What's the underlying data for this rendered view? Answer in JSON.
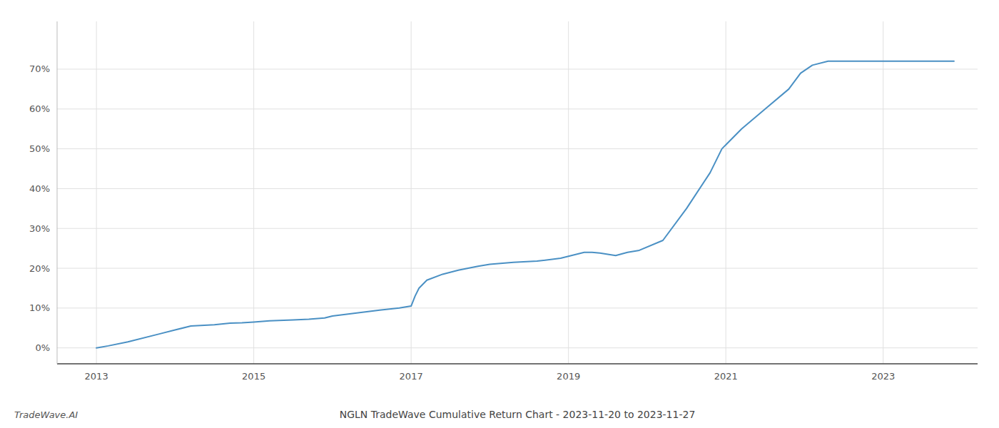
{
  "chart_data": {
    "type": "line",
    "title": "NGLN TradeWave Cumulative Return Chart - 2023-11-20 to 2023-11-27",
    "annotations": [
      "TradeWave.AI"
    ],
    "color": "#4a90c4",
    "grid": true,
    "x": [
      2013.0,
      2013.15,
      2013.4,
      2013.8,
      2014.0,
      2014.2,
      2014.5,
      2014.7,
      2014.85,
      2015.0,
      2015.2,
      2015.5,
      2015.7,
      2015.9,
      2016.0,
      2016.2,
      2016.4,
      2016.6,
      2016.85,
      2017.0,
      2017.05,
      2017.1,
      2017.2,
      2017.4,
      2017.6,
      2017.85,
      2018.0,
      2018.3,
      2018.6,
      2018.9,
      2019.0,
      2019.1,
      2019.2,
      2019.3,
      2019.4,
      2019.5,
      2019.6,
      2019.75,
      2019.9,
      2020.2,
      2020.5,
      2020.8,
      2020.95,
      2021.2,
      2021.5,
      2021.8,
      2021.95,
      2022.1,
      2022.3,
      2022.6,
      2022.85,
      2023.0,
      2023.5,
      2023.9
    ],
    "values": [
      0.0,
      0.5,
      1.5,
      3.5,
      4.5,
      5.5,
      5.8,
      6.2,
      6.3,
      6.5,
      6.8,
      7.0,
      7.2,
      7.5,
      8.0,
      8.5,
      9.0,
      9.5,
      10.0,
      10.5,
      13.0,
      15.0,
      17.0,
      18.5,
      19.5,
      20.5,
      21.0,
      21.5,
      21.8,
      22.5,
      23.0,
      23.5,
      24.0,
      24.0,
      23.8,
      23.5,
      23.2,
      24.0,
      24.5,
      27.0,
      35.0,
      44.0,
      50.0,
      55.0,
      60.0,
      65.0,
      69.0,
      71.0,
      72.0,
      72.0,
      72.0,
      72.0,
      72.0,
      72.0
    ],
    "xlim": [
      2012.5,
      2024.2
    ],
    "ylim": [
      -4,
      82
    ],
    "xticks": [
      2013,
      2015,
      2017,
      2019,
      2021,
      2023
    ],
    "yticks": [
      {
        "value": 0,
        "label": "0%"
      },
      {
        "value": 10,
        "label": "10%"
      },
      {
        "value": 20,
        "label": "20%"
      },
      {
        "value": 30,
        "label": "30%"
      },
      {
        "value": 40,
        "label": "40%"
      },
      {
        "value": 50,
        "label": "50%"
      },
      {
        "value": 60,
        "label": "60%"
      },
      {
        "value": 70,
        "label": "70%"
      }
    ]
  }
}
